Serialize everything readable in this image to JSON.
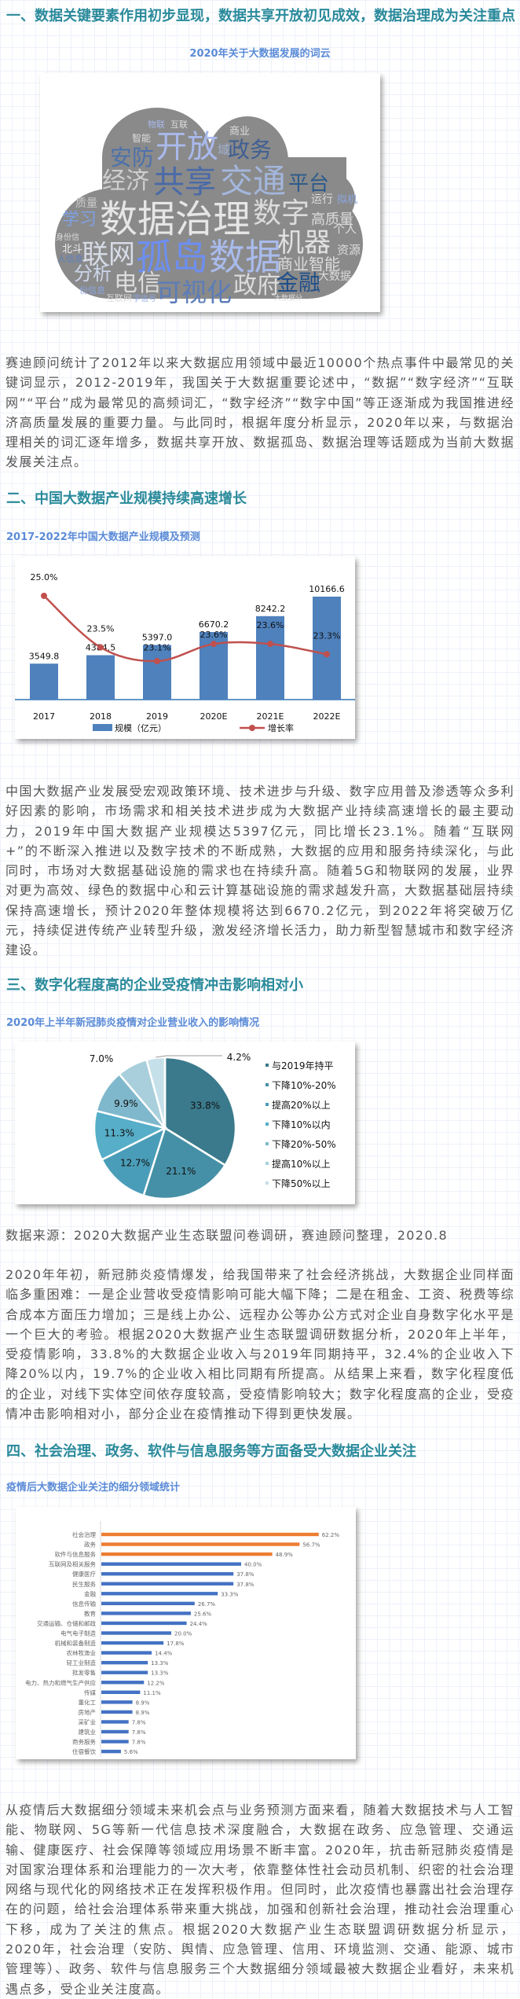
{
  "section1": {
    "heading": "一、数据关键要素作用初步显现，数据共享开放初见成效，数据治理成为关注重点",
    "wordcloud_title": "2020年关于大数据发展的词云",
    "wordcloud_words": [
      "开放",
      "政务",
      "域",
      "物联",
      "互联",
      "商业",
      "智能",
      "安防",
      "经济",
      "共享",
      "交通",
      "平台",
      "数据治理",
      "数字",
      "质量",
      "运行",
      "拟机",
      "高质量",
      "学习",
      "机器",
      "个人",
      "身份信",
      "联网",
      "孤岛",
      "数据",
      "北斗",
      "资源",
      "人信息",
      "商业智能",
      "分析",
      "电信",
      "可视化",
      "政府",
      "金融",
      "大数据",
      "份信息",
      "互联网",
      "字信号",
      "大数据分"
    ],
    "paragraph": "赛迪顾问统计了2012年以来大数据应用领域中最近10000个热点事件中最常见的关键词显示，2012-2019年，我国关于大数据重要论述中，“数据”“数字经济”“互联网”“平台”成为最常见的高频词汇，“数字经济”“数字中国”等正逐渐成为我国推进经济高质量发展的重要力量。与此同时，根据年度分析显示，2020年以来，与数据治理相关的词汇逐年增多，数据共享开放、数据孤岛、数据治理等话题成为当前大数据发展关注点。"
  },
  "section2": {
    "heading": "二、中国大数据产业规模持续高速增长",
    "chart_title": "2017-2022年中国大数据产业规模及预测",
    "paragraph": "中国大数据产业发展受宏观政策环境、技术进步与升级、数字应用普及渗透等众多利好因素的影响，市场需求和相关技术进步成为大数据产业持续高速增长的最主要动力，2019年中国大数据产业规模达5397亿元，同比增长23.1%。随着“互联网+”的不断深入推进以及数字技术的不断成熟，大数据的应用和服务持续深化，与此同时，市场对大数据基础设施的需求也在持续升高。随着5G和物联网的发展，业界对更为高效、绿色的数据中心和云计算基础设施的需求越发升高，大数据基础层持续保持高速增长，预计2020年整体规模将达到6670.2亿元，到2022年将突破万亿元，持续促进传统产业转型升级，激发经济增长活力，助力新型智慧城市和数字经济建设。"
  },
  "section3": {
    "heading": "三、数字化程度高的企业受疫情冲击影响相对小",
    "chart_title": "2020年上半年新冠肺炎疫情对企业营业收入的影响情况",
    "source": "数据来源：2020大数据产业生态联盟问卷调研，赛迪顾问整理，2020.8",
    "paragraph": "2020年年初，新冠肺炎疫情爆发，给我国带来了社会经济挑战，大数据企业同样面临多重困难：一是企业营收受疫情影响可能大幅下降；二是在租金、工资、税费等综合成本方面压力增加；三是线上办公、远程办公等办公方式对企业自身数字化水平是一个巨大的考验。根据2020大数据产业生态联盟调研数据分析，2020年上半年，受疫情影响，33.8%的大数据企业收入与2019年同期持平，32.4%的企业收入下降20%以内，19.7%的企业收入相比同期有所提高。从结果上来看，数字化程度低的企业，对线下实体空间依存度较高，受疫情影响较大；数字化程度高的企业，受疫情冲击影响相对小，部分企业在疫情推动下得到更快发展。"
  },
  "section4": {
    "heading": "四、社会治理、政务、软件与信息服务等方面备受大数据企业关注",
    "chart_title": "疫情后大数据企业关注的细分领域统计",
    "paragraph": "从疫情后大数据细分领域未来机会点与业务预测方面来看，随着大数据技术与人工智能、物联网、5G等新一代信息技术深度融合，大数据在政务、应急管理、交通运输、健康医疗、社会保障等领域应用场景不断丰富。2020年，抗击新冠肺炎疫情是对国家治理体系和治理能力的一次大考，依靠整体性社会动员机制、织密的社会治理网络与现代化的网络技术正在发挥积极作用。但同时，此次疫情也暴露出社会治理存在的问题，给社会治理体系带来重大挑战，加强和创新社会治理，推动社会治理重心下移，成为了关注的焦点。根据2020大数据产业生态联盟调研数据分析显示，2020年，社会治理（安防、舆情、应急管理、信用、环境监测、交通、能源、城市管理等）、政务、软件与信息服务三个大数据细分领域最被大数据企业看好，未来机遇点多，受企业关注度高。"
  },
  "colors": {
    "heading": "#2a8a9b",
    "chart_title": "#5b8bd7",
    "text": "#555555"
  },
  "chart_data": [
    {
      "type": "bar+line",
      "categories": [
        "2017",
        "2018",
        "2019",
        "2020E",
        "2021E",
        "2022E"
      ],
      "series": [
        {
          "name": "规模（亿元）",
          "type": "bar",
          "values": [
            3549.8,
            4384.5,
            5397.0,
            6670.2,
            8242.2,
            10166.6
          ],
          "labels": [
            "3549.8",
            "4384.5",
            "5397.0",
            "6670.2",
            "8242.2",
            "10166.6"
          ],
          "color": "#4f81bd"
        },
        {
          "name": "增长率",
          "type": "line",
          "values": [
            25.0,
            23.5,
            23.1,
            23.6,
            23.6,
            23.3
          ],
          "labels": [
            "25.0%",
            "23.5%",
            "23.1%",
            "23.6%",
            "23.6%",
            "23.3%"
          ],
          "color": "#c0504d"
        }
      ],
      "legend": "bottom",
      "grid": false
    },
    {
      "type": "pie",
      "slices": [
        {
          "label": "与2019年持平",
          "value": 33.8,
          "text": "33.8%",
          "color": "#3a7a8c"
        },
        {
          "label": "下降10%-20%",
          "value": 21.1,
          "text": "21.1%",
          "color": "#4590a6"
        },
        {
          "label": "提高20%以上",
          "value": 12.7,
          "text": "12.7%",
          "color": "#4a9db8"
        },
        {
          "label": "下降10%以内",
          "value": 11.3,
          "text": "11.3%",
          "color": "#56aec8"
        },
        {
          "label": "下降20%-50%",
          "value": 9.9,
          "text": "9.9%",
          "color": "#7fb8cc"
        },
        {
          "label": "提高10%以上",
          "value": 7.0,
          "text": "7.0%",
          "color": "#a9cfdc"
        },
        {
          "label": "下降50%以上",
          "value": 4.2,
          "text": "4.2%",
          "color": "#c5e0e8"
        }
      ],
      "legend": "right"
    },
    {
      "type": "bar",
      "orientation": "horizontal",
      "categories": [
        "社会治理",
        "政务",
        "软件与信息服务",
        "互联网及相关服务",
        "健康医疗",
        "民生服务",
        "金融",
        "信息传输",
        "教育",
        "交通运输、仓储和邮政",
        "电气电子制造",
        "机械和装备制造",
        "农林牧渔业",
        "轻工业制造",
        "批发零售",
        "电力、热力和燃气生产供应",
        "传媒",
        "重化工",
        "房地产",
        "采矿业",
        "建筑业",
        "商务服务",
        "住宿餐饮"
      ],
      "values": [
        62.2,
        56.7,
        48.9,
        40.0,
        37.8,
        37.8,
        33.3,
        26.7,
        25.6,
        24.4,
        20.0,
        17.8,
        14.4,
        13.3,
        13.3,
        12.2,
        11.1,
        8.9,
        8.9,
        7.8,
        7.8,
        7.8,
        5.6
      ],
      "labels": [
        "62.2%",
        "56.7%",
        "48.9%",
        "40.0%",
        "37.8%",
        "37.8%",
        "33.3%",
        "26.7%",
        "25.6%",
        "24.4%",
        "20.0%",
        "17.8%",
        "14.4%",
        "13.3%",
        "13.3%",
        "12.2%",
        "11.1%",
        "8.9%",
        "8.9%",
        "7.8%",
        "7.8%",
        "7.8%",
        "5.6%"
      ],
      "highlight_color": "#ed7d31",
      "color": "#4472c4",
      "highlight_top": 3,
      "grid": false
    }
  ]
}
